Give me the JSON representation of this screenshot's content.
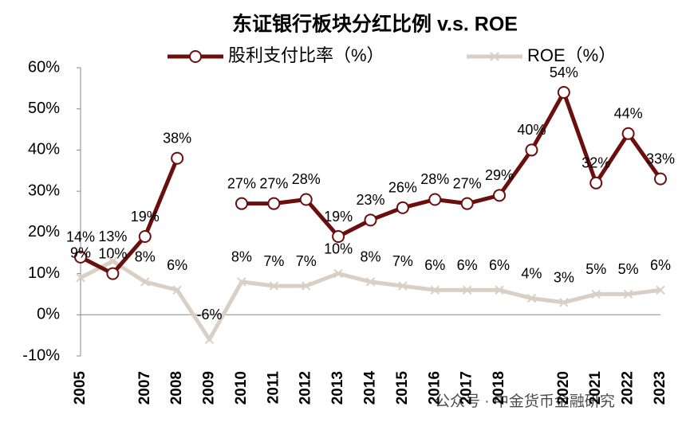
{
  "chart_data": {
    "type": "line",
    "title": "东证银行板块分红比例 v.s. ROE",
    "categories": [
      "2005",
      null,
      "2007",
      "2008",
      "2009",
      "2010",
      "2011",
      "2012",
      "2013",
      "2014",
      "2015",
      "2016",
      "2017",
      "2018",
      null,
      "2020",
      "2021",
      "2022",
      "2023"
    ],
    "series": [
      {
        "name": "股利支付比率（%）",
        "color": "#6b0e0e",
        "marker": "circle",
        "values": [
          14,
          10,
          19,
          38,
          null,
          27,
          27,
          28,
          19,
          23,
          26,
          28,
          27,
          29,
          40,
          54,
          32,
          44,
          33
        ],
        "value_labels": [
          "14%",
          "10%",
          "19%",
          "38%",
          null,
          "27%",
          "27%",
          "28%",
          "19%",
          "23%",
          "26%",
          "28%",
          "27%",
          "29%",
          "40%",
          "54%",
          "32%",
          "44%",
          "33%"
        ]
      },
      {
        "name": "ROE（%）",
        "color": "#d9cfc4",
        "marker": "x",
        "values": [
          9,
          13,
          8,
          6,
          -6,
          8,
          7,
          7,
          10,
          8,
          7,
          6,
          6,
          6,
          4,
          3,
          5,
          5,
          6
        ],
        "value_labels": [
          "9%",
          "13%",
          "8%",
          "6%",
          "-6%",
          "8%",
          "7%",
          "7%",
          "10%",
          "8%",
          "7%",
          "6%",
          "6%",
          "6%",
          "4%",
          "3%",
          "5%",
          "5%",
          "6%"
        ]
      }
    ],
    "ylim": [
      -10,
      60
    ],
    "yticks": [
      {
        "value": -10,
        "label": "-10%"
      },
      {
        "value": 0,
        "label": "0%"
      },
      {
        "value": 10,
        "label": "10%"
      },
      {
        "value": 20,
        "label": "20%"
      },
      {
        "value": 30,
        "label": "30%"
      },
      {
        "value": 40,
        "label": "40%"
      },
      {
        "value": 50,
        "label": "50%"
      },
      {
        "value": 60,
        "label": "60%"
      }
    ],
    "legend": "top",
    "watermark": "公众号 · 中金货币金融研究"
  }
}
